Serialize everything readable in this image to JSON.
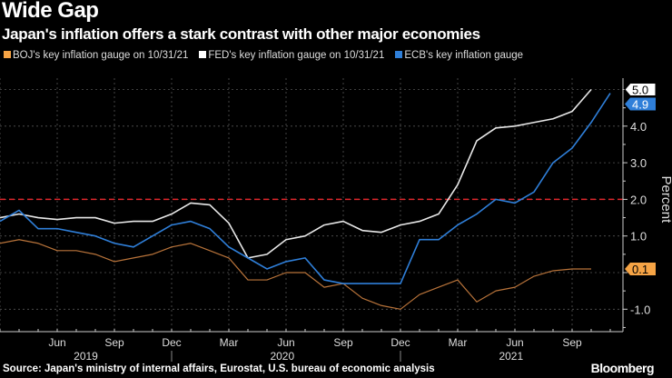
{
  "header": {
    "title": "Wide Gap",
    "subtitle": "Japan's inflation offers a stark contrast with other major economies"
  },
  "footer": {
    "source": "Source: Japan's ministry of internal affairs, Eurostat, U.S. bureau of economic analysis",
    "brand": "Bloomberg"
  },
  "chart_data": {
    "type": "line",
    "title": "Wide Gap",
    "ylabel": "Percent",
    "ylim": [
      -1.5,
      5.0
    ],
    "yticks": [
      "-1.0",
      "1.0",
      "2.0",
      "3.0",
      "4.0"
    ],
    "reference_line": {
      "value": 2.0,
      "color": "#e0262b",
      "style": "dashed"
    },
    "x_start": "2019-03",
    "x_tick_labels": [
      {
        "label": "Jun",
        "month": 3
      },
      {
        "label": "Sep",
        "month": 6
      },
      {
        "label": "Dec",
        "month": 9
      },
      {
        "label": "Mar",
        "month": 12
      },
      {
        "label": "Jun",
        "month": 15
      },
      {
        "label": "Sep",
        "month": 18
      },
      {
        "label": "Dec",
        "month": 21
      },
      {
        "label": "Mar",
        "month": 24
      },
      {
        "label": "Jun",
        "month": 27
      },
      {
        "label": "Sep",
        "month": 30
      }
    ],
    "year_labels": [
      {
        "label": "2019",
        "month": 4.5
      },
      {
        "label": "2020",
        "month": 14.8
      },
      {
        "label": "2021",
        "month": 26.8
      }
    ],
    "series": [
      {
        "name": "BOJ's key inflation gauge on 10/31/21",
        "color": "#f6a445",
        "line_color": "#b8733a",
        "end_label": "0.1",
        "values": [
          0.8,
          0.9,
          0.8,
          0.6,
          0.6,
          0.5,
          0.3,
          0.4,
          0.5,
          0.7,
          0.8,
          0.6,
          0.4,
          -0.2,
          -0.2,
          0.0,
          0.0,
          -0.4,
          -0.3,
          -0.7,
          -0.9,
          -1.0,
          -0.6,
          -0.4,
          -0.2,
          -0.8,
          -0.5,
          -0.4,
          -0.1,
          0.05,
          0.1,
          0.1
        ]
      },
      {
        "name": "FED's key inflation gauge on 10/31/21",
        "color": "#ffffff",
        "line_color": "#e8e8e8",
        "end_label": "5.0",
        "values": [
          1.5,
          1.6,
          1.5,
          1.45,
          1.5,
          1.5,
          1.35,
          1.4,
          1.4,
          1.6,
          1.9,
          1.85,
          1.35,
          0.4,
          0.5,
          0.9,
          1.0,
          1.3,
          1.4,
          1.15,
          1.1,
          1.3,
          1.4,
          1.6,
          2.4,
          3.6,
          3.95,
          4.0,
          4.1,
          4.2,
          4.4,
          5.0
        ]
      },
      {
        "name": "ECB's key inflation gauge",
        "color": "#2f7fd9",
        "line_color": "#2f7fd9",
        "end_label": "4.9",
        "values": [
          1.4,
          1.7,
          1.2,
          1.2,
          1.1,
          1.0,
          0.8,
          0.7,
          1.0,
          1.3,
          1.4,
          1.2,
          0.7,
          0.4,
          0.1,
          0.3,
          0.4,
          -0.2,
          -0.3,
          -0.3,
          -0.3,
          -0.3,
          0.9,
          0.9,
          1.3,
          1.6,
          2.0,
          1.9,
          2.2,
          3.0,
          3.4,
          4.1,
          4.9
        ]
      }
    ]
  }
}
